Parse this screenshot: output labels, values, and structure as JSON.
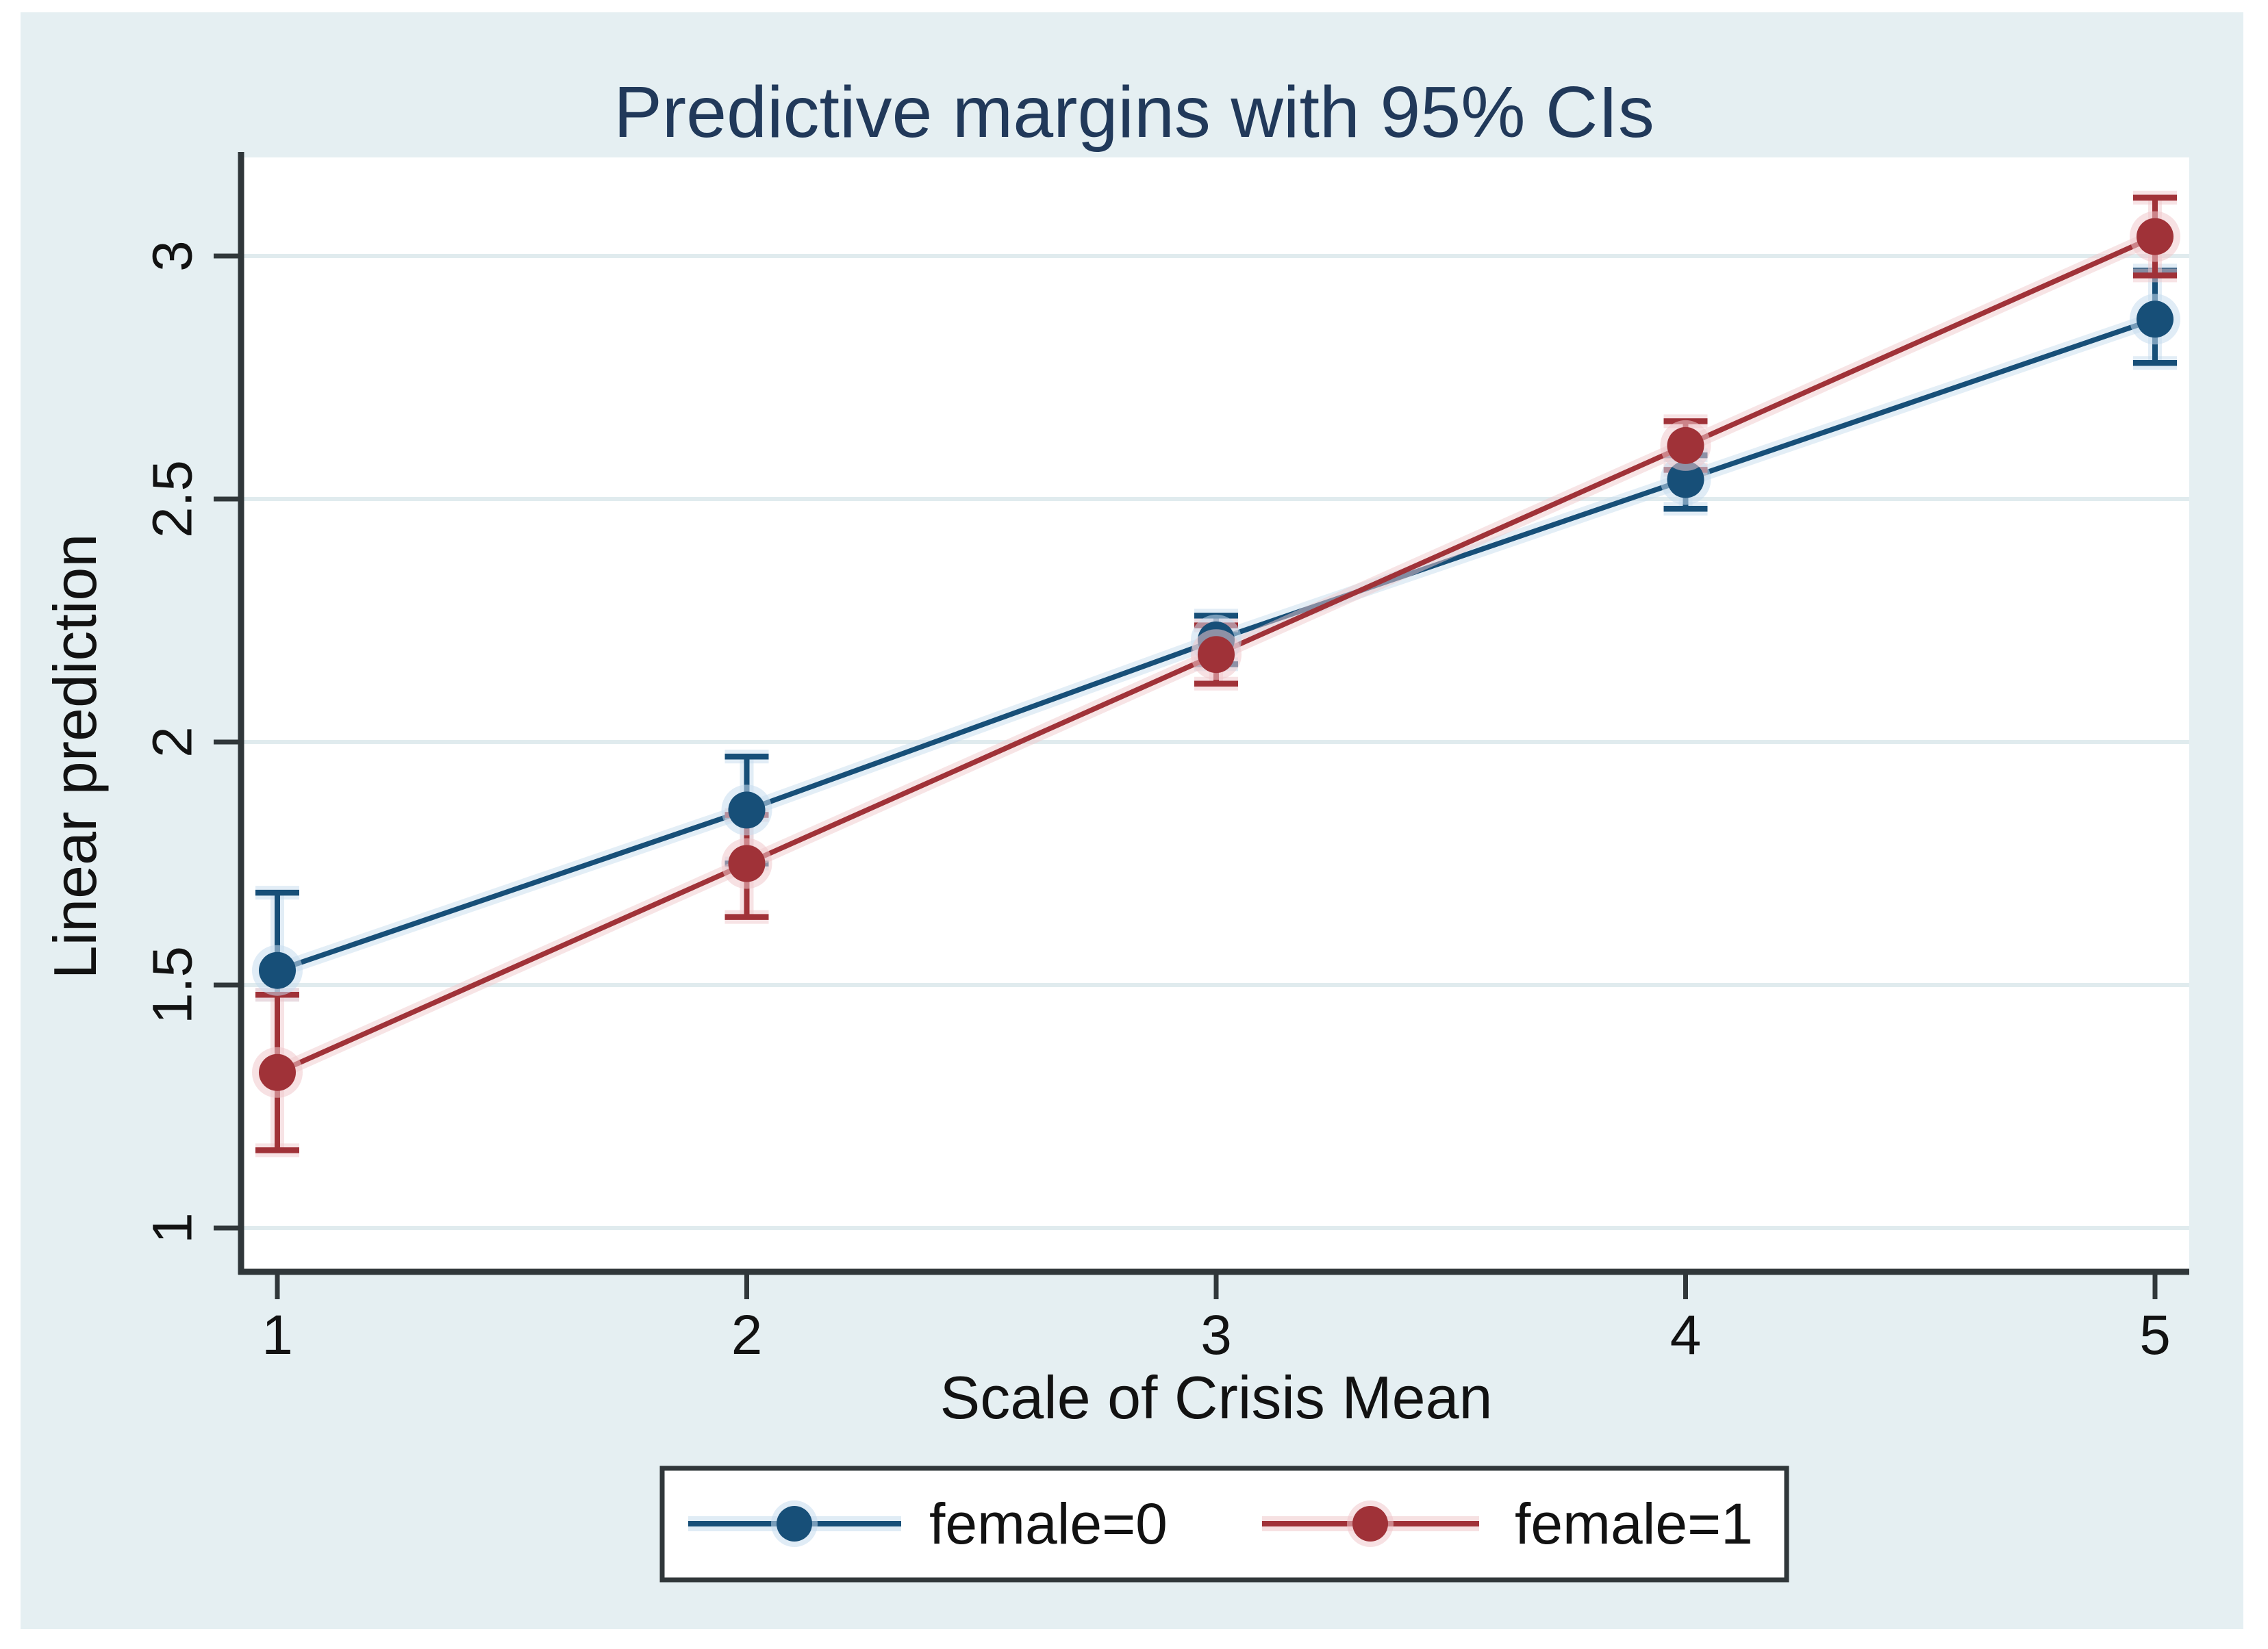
{
  "figure": {
    "title": "Predictive margins with 95% CIs",
    "x_axis": {
      "label": "Scale of Crisis Mean",
      "ticks": [
        "1",
        "2",
        "3",
        "4",
        "5"
      ]
    },
    "y_axis": {
      "label": "Linear prediction",
      "ticks": [
        "1",
        "1.5",
        "2",
        "2.5",
        "3"
      ]
    },
    "legend": [
      {
        "label": "female=0",
        "color": "#174f78",
        "glow": "#c7ddee"
      },
      {
        "label": "female=1",
        "color": "#a03238",
        "glow": "#f0c9cc"
      }
    ]
  },
  "colors": {
    "panel_background": "#e5eff2",
    "plot_background": "#ffffff",
    "gridline": "#e0ebee",
    "axis_line": "#30373a",
    "tick_text": "#121212",
    "title_text": "#21395a",
    "legend_border": "#30373a",
    "navy_series": "#174f78",
    "maroon_series": "#a03238"
  },
  "chart_data": {
    "type": "line",
    "title": "Predictive margins with 95% CIs",
    "xlabel": "Scale of Crisis Mean",
    "ylabel": "Linear prediction",
    "x": [
      1,
      2,
      3,
      4,
      5
    ],
    "y_ticks": [
      1,
      1.5,
      2,
      2.5,
      3
    ],
    "xlim": [
      0.92,
      5.07
    ],
    "ylim": [
      0.9,
      3.22
    ],
    "grid": true,
    "legend_position": "bottom",
    "error_bars": "95% CI",
    "series": [
      {
        "name": "female=0",
        "color": "#174f78",
        "glow": "#c7ddee",
        "values": [
          1.53,
          1.86,
          2.21,
          2.54,
          2.87
        ],
        "ci_low": [
          1.48,
          1.75,
          2.16,
          2.48,
          2.78
        ],
        "ci_high": [
          1.69,
          1.97,
          2.26,
          2.59,
          2.97
        ]
      },
      {
        "name": "female=1",
        "color": "#a03238",
        "glow": "#f0c9cc",
        "values": [
          1.32,
          1.75,
          2.18,
          2.61,
          3.04
        ],
        "ci_low": [
          1.16,
          1.64,
          2.12,
          2.56,
          2.96
        ],
        "ci_high": [
          1.48,
          1.85,
          2.24,
          2.66,
          3.12
        ]
      }
    ]
  }
}
